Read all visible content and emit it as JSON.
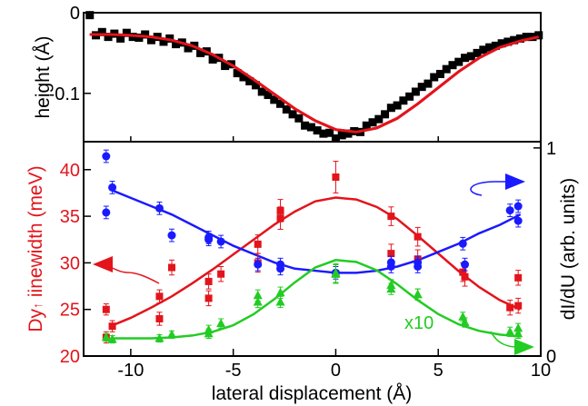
{
  "chart_data": [
    {
      "type": "scatter",
      "panel": "top",
      "ylabel": "height (Å)",
      "ylim": [
        -0.16,
        0.0
      ],
      "yticks": [
        "0",
        "-0.1"
      ],
      "xlim": [
        -12.3,
        10
      ],
      "series": [
        {
          "role": "data",
          "marker": "square",
          "color": "#000000",
          "x": [
            -12.0,
            -11.7,
            -11.4,
            -11.1,
            -10.8,
            -10.5,
            -10.2,
            -9.9,
            -9.6,
            -9.3,
            -9.0,
            -8.7,
            -8.4,
            -8.1,
            -7.8,
            -7.5,
            -7.2,
            -6.9,
            -6.6,
            -6.3,
            -6.0,
            -5.7,
            -5.4,
            -5.1,
            -4.8,
            -4.5,
            -4.2,
            -3.9,
            -3.6,
            -3.3,
            -3.0,
            -2.7,
            -2.4,
            -2.1,
            -1.8,
            -1.5,
            -1.2,
            -0.9,
            -0.6,
            -0.3,
            0.0,
            0.3,
            0.6,
            0.9,
            1.2,
            1.5,
            1.8,
            2.1,
            2.4,
            2.7,
            3.0,
            3.3,
            3.6,
            3.9,
            4.2,
            4.5,
            4.8,
            5.1,
            5.4,
            5.7,
            6.0,
            6.3,
            6.6,
            6.9,
            7.2,
            7.5,
            7.8,
            8.1,
            8.4,
            8.7,
            9.0,
            9.3,
            9.6,
            9.9
          ],
          "y": [
            -0.003,
            -0.028,
            -0.024,
            -0.03,
            -0.026,
            -0.032,
            -0.025,
            -0.03,
            -0.031,
            -0.027,
            -0.034,
            -0.03,
            -0.036,
            -0.032,
            -0.039,
            -0.037,
            -0.044,
            -0.041,
            -0.05,
            -0.048,
            -0.058,
            -0.056,
            -0.066,
            -0.064,
            -0.075,
            -0.08,
            -0.085,
            -0.09,
            -0.098,
            -0.102,
            -0.108,
            -0.113,
            -0.12,
            -0.126,
            -0.131,
            -0.14,
            -0.142,
            -0.146,
            -0.15,
            -0.149,
            -0.156,
            -0.152,
            -0.15,
            -0.147,
            -0.148,
            -0.14,
            -0.136,
            -0.132,
            -0.126,
            -0.118,
            -0.115,
            -0.109,
            -0.104,
            -0.098,
            -0.092,
            -0.088,
            -0.08,
            -0.076,
            -0.07,
            -0.065,
            -0.061,
            -0.056,
            -0.054,
            -0.05,
            -0.046,
            -0.043,
            -0.041,
            -0.038,
            -0.036,
            -0.034,
            -0.032,
            -0.03,
            -0.03,
            -0.028
          ]
        },
        {
          "role": "fit",
          "color": "#e3141b",
          "x": [
            -12.0,
            -11.0,
            -10.0,
            -9.0,
            -8.0,
            -7.0,
            -6.0,
            -5.0,
            -4.0,
            -3.0,
            -2.0,
            -1.0,
            0.0,
            1.0,
            2.0,
            3.0,
            4.0,
            5.0,
            6.0,
            7.0,
            8.0,
            9.0,
            9.9
          ],
          "y": [
            -0.027,
            -0.027,
            -0.028,
            -0.03,
            -0.034,
            -0.041,
            -0.052,
            -0.066,
            -0.083,
            -0.101,
            -0.119,
            -0.134,
            -0.145,
            -0.148,
            -0.143,
            -0.131,
            -0.113,
            -0.093,
            -0.073,
            -0.056,
            -0.043,
            -0.035,
            -0.03
          ]
        }
      ]
    },
    {
      "type": "scatter",
      "panel": "bottom",
      "xlabel": "lateral displacement (Å)",
      "xticks": [
        "-10",
        "-5",
        "0",
        "5",
        "10"
      ],
      "xlim": [
        -12.3,
        10
      ],
      "ylabel_left_prefix": "Dy",
      "ylabel_left_arrow": "↑",
      "ylabel_left_suffix": " iinewidth (meV)",
      "ylim_left": [
        20,
        43
      ],
      "yticks_left": [
        "20",
        "25",
        "30",
        "35",
        "40"
      ],
      "ylabel_right": "dI/dU (arb. units)",
      "ylim_right": [
        0,
        1.03
      ],
      "yticks_right": [
        "0",
        "1"
      ],
      "annotation": "x10",
      "series": [
        {
          "color": "#e3141b",
          "marker": "square",
          "axis": "left",
          "x": [
            -11.2,
            -11.2,
            -10.9,
            -8.6,
            -8.6,
            -8.0,
            -6.2,
            -6.2,
            -5.6,
            -3.8,
            -3.8,
            -2.7,
            -2.7,
            0.0,
            0.0,
            2.7,
            2.7,
            4.0,
            4.0,
            6.2,
            6.3,
            8.5,
            8.9,
            8.9
          ],
          "y": [
            25.0,
            22.0,
            23.2,
            26.4,
            24.0,
            29.5,
            28.0,
            26.2,
            28.8,
            32.0,
            30.0,
            35.6,
            34.8,
            39.2,
            28.8,
            35.0,
            31.0,
            32.8,
            30.4,
            29.0,
            28.5,
            25.2,
            28.4,
            25.4
          ],
          "err": [
            0.6,
            0.6,
            0.6,
            0.7,
            0.7,
            0.8,
            0.8,
            0.8,
            0.8,
            1.0,
            1.0,
            1.2,
            1.2,
            1.7,
            1.0,
            1.0,
            1.0,
            1.0,
            1.0,
            1.0,
            1.0,
            0.8,
            0.8,
            0.8
          ]
        },
        {
          "color": "#e3141b",
          "role": "fit",
          "axis": "left",
          "x": [
            -11.0,
            -10.0,
            -9.0,
            -8.0,
            -7.0,
            -6.0,
            -5.0,
            -4.0,
            -3.0,
            -2.0,
            -1.0,
            0.0,
            1.0,
            2.0,
            3.0,
            4.0,
            5.0,
            6.0,
            7.0,
            8.0,
            9.0
          ],
          "y": [
            23.2,
            24.1,
            25.2,
            26.4,
            27.8,
            29.3,
            30.9,
            32.5,
            34.1,
            35.5,
            36.6,
            37.0,
            36.8,
            36.0,
            34.7,
            32.9,
            31.0,
            29.1,
            27.4,
            26.0,
            25.0
          ]
        },
        {
          "color": "#1a1aff",
          "marker": "circle",
          "axis": "right",
          "x": [
            -11.2,
            -11.2,
            -10.9,
            -8.6,
            -8.0,
            -6.2,
            -6.2,
            -5.6,
            -3.8,
            -2.7,
            -2.7,
            0.0,
            2.7,
            2.7,
            4.0,
            4.0,
            6.2,
            6.3,
            8.5,
            8.9,
            8.9
          ],
          "y": [
            0.96,
            0.69,
            0.81,
            0.71,
            0.58,
            0.57,
            0.56,
            0.55,
            0.44,
            0.42,
            0.44,
            0.4,
            0.43,
            0.45,
            0.43,
            0.45,
            0.54,
            0.44,
            0.7,
            0.72,
            0.65
          ],
          "err": [
            0.03,
            0.03,
            0.03,
            0.03,
            0.03,
            0.03,
            0.03,
            0.03,
            0.03,
            0.03,
            0.03,
            0.03,
            0.03,
            0.03,
            0.03,
            0.03,
            0.03,
            0.03,
            0.03,
            0.03,
            0.03
          ]
        },
        {
          "color": "#1a1aff",
          "role": "fit",
          "axis": "right",
          "x": [
            -11.0,
            -10.0,
            -9.0,
            -8.0,
            -7.0,
            -6.0,
            -5.0,
            -4.0,
            -3.0,
            -2.0,
            -1.0,
            0.0,
            1.0,
            2.0,
            3.0,
            4.0,
            5.0,
            6.0,
            7.0,
            8.0,
            9.0
          ],
          "y": [
            0.8,
            0.76,
            0.72,
            0.68,
            0.63,
            0.58,
            0.53,
            0.49,
            0.45,
            0.42,
            0.41,
            0.4,
            0.4,
            0.41,
            0.43,
            0.46,
            0.5,
            0.54,
            0.59,
            0.63,
            0.68
          ]
        },
        {
          "color": "#22cc22",
          "marker": "triangle",
          "axis": "left",
          "x": [
            -11.2,
            -10.9,
            -8.6,
            -8.0,
            -6.2,
            -6.2,
            -5.6,
            -3.8,
            -3.8,
            -2.7,
            -2.7,
            0.0,
            0.0,
            2.7,
            2.7,
            4.0,
            4.0,
            6.2,
            6.3,
            8.5,
            8.9,
            8.9
          ],
          "y": [
            22.0,
            21.8,
            21.9,
            22.3,
            22.8,
            22.4,
            23.5,
            26.5,
            25.8,
            26.8,
            25.8,
            28.8,
            28.9,
            27.6,
            27.2,
            26.6,
            26.6,
            24.2,
            23.6,
            22.6,
            23.0,
            22.4
          ],
          "err": [
            0.4,
            0.4,
            0.4,
            0.4,
            0.5,
            0.5,
            0.5,
            0.6,
            0.6,
            0.6,
            0.6,
            1.0,
            1.0,
            0.6,
            0.6,
            0.6,
            0.6,
            0.5,
            0.5,
            0.5,
            0.5,
            0.5
          ]
        },
        {
          "color": "#22cc22",
          "role": "fit",
          "axis": "left",
          "x": [
            -11.0,
            -10.0,
            -9.0,
            -8.0,
            -7.0,
            -6.0,
            -5.0,
            -4.0,
            -3.0,
            -2.0,
            -1.0,
            0.0,
            1.0,
            2.0,
            3.0,
            4.0,
            5.0,
            6.0,
            7.0,
            8.0,
            9.0
          ],
          "y": [
            21.9,
            21.9,
            21.9,
            22.0,
            22.2,
            22.6,
            23.3,
            24.5,
            26.1,
            27.9,
            29.5,
            30.3,
            30.1,
            29.2,
            27.7,
            26.0,
            24.5,
            23.4,
            22.7,
            22.3,
            22.1
          ]
        }
      ]
    }
  ]
}
